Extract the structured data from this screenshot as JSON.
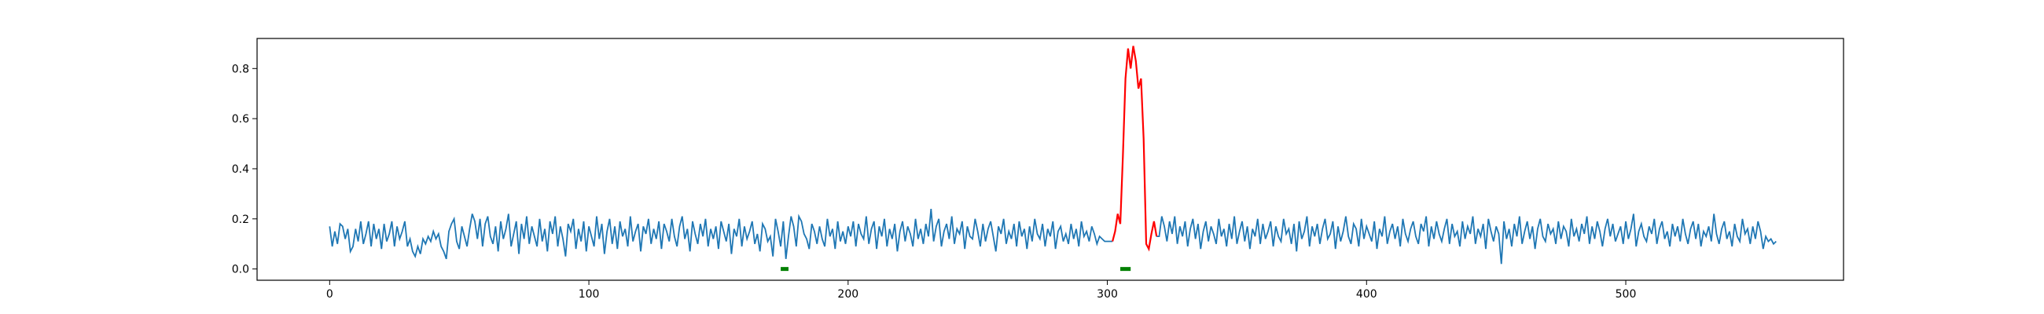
{
  "chart_data": {
    "type": "line",
    "title": "",
    "xlabel": "",
    "ylabel": "",
    "xlim": [
      -28,
      584
    ],
    "ylim": [
      -0.045,
      0.92
    ],
    "x_ticks": [
      0,
      100,
      200,
      300,
      400,
      500
    ],
    "x_tick_labels": [
      "0",
      "100",
      "200",
      "300",
      "400",
      "500"
    ],
    "y_ticks": [
      0.0,
      0.2,
      0.4,
      0.6,
      0.8
    ],
    "y_tick_labels": [
      "0.0",
      "0.2",
      "0.4",
      "0.6",
      "0.8"
    ],
    "grid": false,
    "legend": "none",
    "series": [
      {
        "style": "line",
        "color": "#1f77b4",
        "x_start": 0,
        "x_step": 1,
        "values": [
          0.17,
          0.09,
          0.15,
          0.1,
          0.18,
          0.17,
          0.12,
          0.16,
          0.07,
          0.09,
          0.16,
          0.11,
          0.19,
          0.1,
          0.14,
          0.19,
          0.09,
          0.18,
          0.12,
          0.16,
          0.08,
          0.18,
          0.11,
          0.14,
          0.19,
          0.09,
          0.17,
          0.12,
          0.15,
          0.19,
          0.09,
          0.12,
          0.07,
          0.05,
          0.09,
          0.06,
          0.12,
          0.1,
          0.13,
          0.11,
          0.15,
          0.12,
          0.14,
          0.09,
          0.07,
          0.04,
          0.15,
          0.18,
          0.2,
          0.11,
          0.08,
          0.17,
          0.13,
          0.09,
          0.16,
          0.22,
          0.19,
          0.12,
          0.2,
          0.09,
          0.18,
          0.21,
          0.13,
          0.1,
          0.17,
          0.07,
          0.19,
          0.12,
          0.16,
          0.22,
          0.09,
          0.14,
          0.19,
          0.06,
          0.18,
          0.12,
          0.21,
          0.1,
          0.17,
          0.13,
          0.09,
          0.2,
          0.11,
          0.16,
          0.07,
          0.19,
          0.14,
          0.21,
          0.09,
          0.17,
          0.12,
          0.05,
          0.18,
          0.15,
          0.2,
          0.08,
          0.16,
          0.11,
          0.19,
          0.07,
          0.17,
          0.13,
          0.09,
          0.21,
          0.12,
          0.18,
          0.06,
          0.15,
          0.2,
          0.1,
          0.17,
          0.08,
          0.19,
          0.13,
          0.16,
          0.09,
          0.21,
          0.11,
          0.15,
          0.18,
          0.07,
          0.17,
          0.14,
          0.2,
          0.1,
          0.16,
          0.12,
          0.19,
          0.08,
          0.18,
          0.15,
          0.11,
          0.2,
          0.13,
          0.09,
          0.17,
          0.21,
          0.12,
          0.16,
          0.07,
          0.19,
          0.14,
          0.1,
          0.18,
          0.13,
          0.2,
          0.09,
          0.16,
          0.12,
          0.17,
          0.08,
          0.19,
          0.15,
          0.11,
          0.18,
          0.06,
          0.16,
          0.13,
          0.2,
          0.09,
          0.17,
          0.12,
          0.15,
          0.19,
          0.1,
          0.14,
          0.07,
          0.18,
          0.16,
          0.11,
          0.13,
          0.05,
          0.2,
          0.15,
          0.09,
          0.19,
          0.04,
          0.13,
          0.21,
          0.17,
          0.09,
          0.21,
          0.19,
          0.14,
          0.12,
          0.08,
          0.18,
          0.15,
          0.1,
          0.17,
          0.12,
          0.09,
          0.2,
          0.13,
          0.16,
          0.08,
          0.19,
          0.11,
          0.15,
          0.1,
          0.17,
          0.13,
          0.19,
          0.09,
          0.18,
          0.14,
          0.12,
          0.21,
          0.1,
          0.16,
          0.19,
          0.08,
          0.17,
          0.13,
          0.2,
          0.09,
          0.16,
          0.12,
          0.18,
          0.07,
          0.15,
          0.19,
          0.11,
          0.17,
          0.14,
          0.09,
          0.2,
          0.12,
          0.16,
          0.1,
          0.18,
          0.13,
          0.24,
          0.11,
          0.17,
          0.2,
          0.09,
          0.15,
          0.18,
          0.12,
          0.21,
          0.1,
          0.16,
          0.14,
          0.19,
          0.08,
          0.17,
          0.13,
          0.12,
          0.2,
          0.15,
          0.09,
          0.18,
          0.11,
          0.16,
          0.19,
          0.13,
          0.07,
          0.17,
          0.14,
          0.2,
          0.1,
          0.15,
          0.12,
          0.18,
          0.09,
          0.19,
          0.13,
          0.16,
          0.08,
          0.17,
          0.11,
          0.2,
          0.14,
          0.12,
          0.18,
          0.09,
          0.16,
          0.13,
          0.19,
          0.08,
          0.15,
          0.17,
          0.11,
          0.14,
          0.1,
          0.18,
          0.12,
          0.16,
          0.09,
          0.19,
          0.13,
          0.15,
          0.11,
          0.17,
          0.14,
          0.1,
          0.13,
          0.12,
          0.11
        ],
        "highlight": {
          "color": "#ff0000",
          "x_start": 302,
          "values": [
            0.11,
            0.15,
            0.22,
            0.18,
            0.45,
            0.76,
            0.88,
            0.8,
            0.89,
            0.83,
            0.72,
            0.76,
            0.52,
            0.1,
            0.08,
            0.14,
            0.19,
            0.13
          ]
        },
        "tail_x_start": 320,
        "tail_values": [
          0.13,
          0.21,
          0.17,
          0.11,
          0.19,
          0.14,
          0.21,
          0.1,
          0.17,
          0.13,
          0.19,
          0.09,
          0.16,
          0.2,
          0.12,
          0.18,
          0.08,
          0.15,
          0.19,
          0.11,
          0.17,
          0.14,
          0.1,
          0.2,
          0.13,
          0.16,
          0.09,
          0.18,
          0.12,
          0.21,
          0.1,
          0.15,
          0.19,
          0.11,
          0.17,
          0.08,
          0.16,
          0.13,
          0.2,
          0.1,
          0.18,
          0.12,
          0.15,
          0.19,
          0.09,
          0.17,
          0.13,
          0.11,
          0.2,
          0.14,
          0.16,
          0.1,
          0.18,
          0.07,
          0.19,
          0.12,
          0.15,
          0.21,
          0.09,
          0.17,
          0.13,
          0.18,
          0.1,
          0.16,
          0.2,
          0.12,
          0.14,
          0.19,
          0.08,
          0.17,
          0.11,
          0.15,
          0.21,
          0.13,
          0.1,
          0.18,
          0.16,
          0.09,
          0.2,
          0.12,
          0.17,
          0.14,
          0.11,
          0.19,
          0.08,
          0.16,
          0.13,
          0.21,
          0.1,
          0.15,
          0.18,
          0.12,
          0.17,
          0.09,
          0.2,
          0.14,
          0.11,
          0.16,
          0.19,
          0.13,
          0.1,
          0.18,
          0.15,
          0.21,
          0.09,
          0.17,
          0.12,
          0.19,
          0.14,
          0.11,
          0.16,
          0.2,
          0.1,
          0.18,
          0.13,
          0.15,
          0.09,
          0.19,
          0.12,
          0.17,
          0.14,
          0.21,
          0.1,
          0.16,
          0.13,
          0.18,
          0.08,
          0.2,
          0.15,
          0.11,
          0.17,
          0.14,
          0.02,
          0.19,
          0.12,
          0.16,
          0.09,
          0.18,
          0.13,
          0.21,
          0.1,
          0.15,
          0.19,
          0.12,
          0.17,
          0.08,
          0.16,
          0.2,
          0.13,
          0.11,
          0.18,
          0.14,
          0.16,
          0.1,
          0.19,
          0.12,
          0.17,
          0.15,
          0.09,
          0.2,
          0.13,
          0.16,
          0.11,
          0.18,
          0.14,
          0.21,
          0.1,
          0.17,
          0.12,
          0.19,
          0.15,
          0.09,
          0.16,
          0.2,
          0.13,
          0.18,
          0.11,
          0.14,
          0.17,
          0.1,
          0.19,
          0.12,
          0.16,
          0.22,
          0.09,
          0.15,
          0.18,
          0.13,
          0.11,
          0.17,
          0.14,
          0.2,
          0.1,
          0.16,
          0.19,
          0.12,
          0.15,
          0.09,
          0.18,
          0.13,
          0.17,
          0.11,
          0.2,
          0.14,
          0.1,
          0.16,
          0.19,
          0.12,
          0.18,
          0.09,
          0.15,
          0.13,
          0.17,
          0.11,
          0.22,
          0.14,
          0.1,
          0.16,
          0.19,
          0.12,
          0.15,
          0.09,
          0.18,
          0.13,
          0.11,
          0.2,
          0.14,
          0.16,
          0.1,
          0.17,
          0.12,
          0.19,
          0.15,
          0.08,
          0.13,
          0.11,
          0.12,
          0.1,
          0.11
        ]
      }
    ],
    "markers": [
      {
        "color": "#008000",
        "x_from": 174,
        "x_to": 177,
        "y": 0.0
      },
      {
        "color": "#008000",
        "x_from": 305,
        "x_to": 309,
        "y": 0.0
      }
    ]
  }
}
